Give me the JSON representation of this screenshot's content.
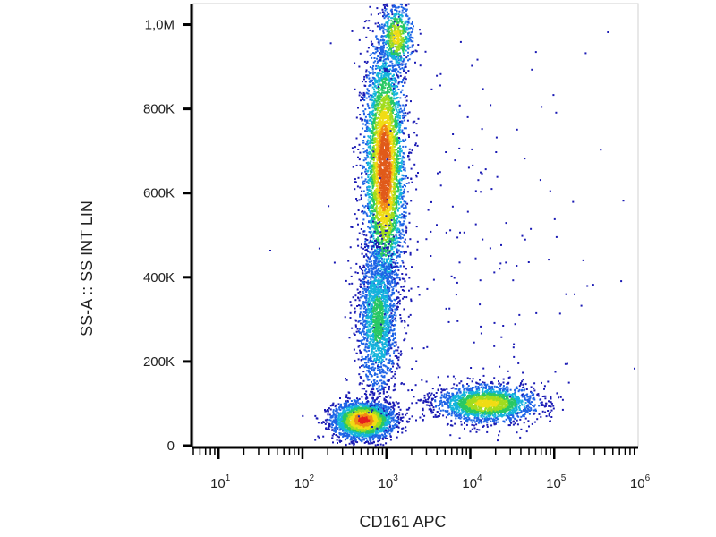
{
  "chart_data": {
    "type": "scatter",
    "style": "density-colored flow cytometry dot plot",
    "title": "",
    "xlabel": "CD161 APC",
    "ylabel": "SS-A :: SS INT LIN",
    "x_scale": "log",
    "xlim": [
      5,
      1000000
    ],
    "ylim": [
      0,
      1050000
    ],
    "x_ticks": [
      {
        "value": 10,
        "base": "10",
        "exp": "1"
      },
      {
        "value": 100,
        "base": "10",
        "exp": "2"
      },
      {
        "value": 1000,
        "base": "10",
        "exp": "3"
      },
      {
        "value": 10000,
        "base": "10",
        "exp": "4"
      },
      {
        "value": 100000,
        "base": "10",
        "exp": "5"
      },
      {
        "value": 1000000,
        "base": "10",
        "exp": "6"
      }
    ],
    "y_ticks": [
      {
        "value": 0,
        "label": "0"
      },
      {
        "value": 200000,
        "label": "200K"
      },
      {
        "value": 400000,
        "label": "400K"
      },
      {
        "value": 600000,
        "label": "600K"
      },
      {
        "value": 800000,
        "label": "800K"
      },
      {
        "value": 1000000,
        "label": "1,0M"
      }
    ],
    "grid": false,
    "legend": "none",
    "color_scale": [
      "#1a1ab4",
      "#1e64e6",
      "#14b4dc",
      "#28c864",
      "#a0dc1e",
      "#f0dc14",
      "#f08c14",
      "#e61e1e"
    ],
    "populations": [
      {
        "log10_x_center": 2.73,
        "y_center": 60000,
        "log10_x_spread": 0.18,
        "y_spread": 22000,
        "count": 2600,
        "peak_color": "#e61e1e"
      },
      {
        "log10_x_center": 2.98,
        "y_center": 660000,
        "log10_x_spread": 0.12,
        "y_spread": 150000,
        "count": 4200,
        "peak_color": "#e05a1a"
      },
      {
        "log10_x_center": 2.9,
        "y_center": 300000,
        "log10_x_spread": 0.12,
        "y_spread": 90000,
        "count": 1700,
        "peak_color": "#28c864"
      },
      {
        "log10_x_center": 3.12,
        "y_center": 970000,
        "log10_x_spread": 0.1,
        "y_spread": 40000,
        "count": 600,
        "peak_color": "#f0dc14"
      },
      {
        "log10_x_center": 4.2,
        "y_center": 100000,
        "log10_x_spread": 0.3,
        "y_spread": 22000,
        "count": 2000,
        "peak_color": "#f0dc14"
      },
      {
        "log10_x_center": 3.9,
        "y_center": 450000,
        "log10_x_spread": 0.8,
        "y_spread": 300000,
        "count": 220,
        "peak_color": "#1a1ab4"
      }
    ]
  }
}
